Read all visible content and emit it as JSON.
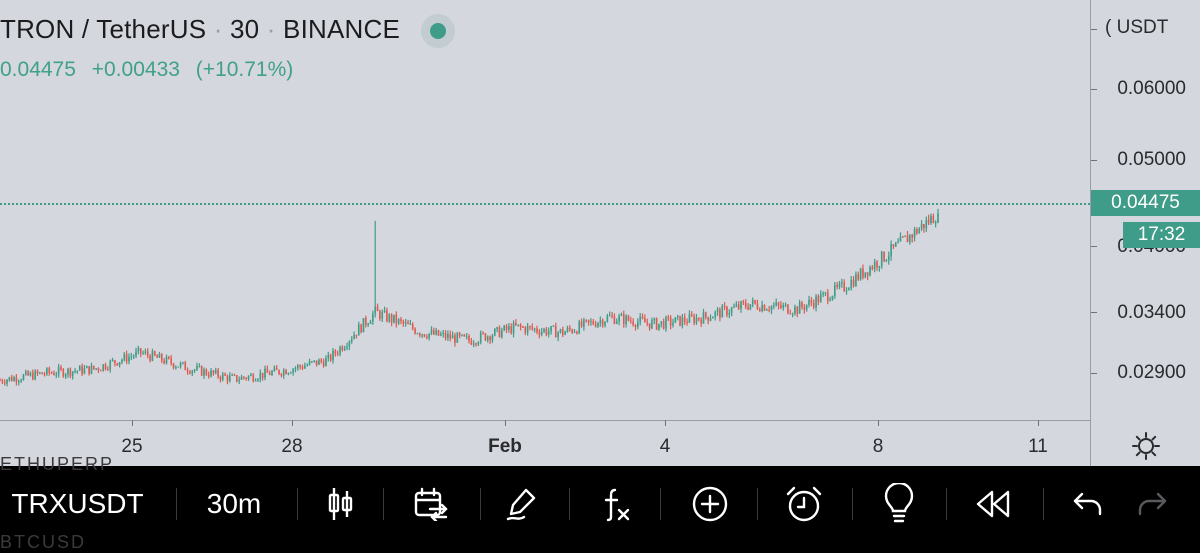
{
  "header": {
    "pair": "TRON / TetherUS",
    "interval": "30",
    "exchange": "BINANCE"
  },
  "ohlc": {
    "last": "0.04475",
    "change": "+0.00433",
    "change_pct": "(+10.71%)"
  },
  "price_axis": {
    "currency": "USDT",
    "ticks": [
      "0.06000",
      "0.05000",
      "0.03400",
      "0.02900"
    ],
    "partial_tick": "0.04000",
    "last_price": "0.04475",
    "countdown": "17:32"
  },
  "time_axis": {
    "labels": [
      "25",
      "28",
      "Feb",
      "4",
      "8",
      "11"
    ],
    "bold_label": "Feb"
  },
  "chart_data": {
    "type": "candlestick",
    "symbol": "TRXUSDT",
    "interval": "30m",
    "x_range": [
      "Jan 23",
      "Feb 9"
    ],
    "ylim": [
      0.026,
      0.063
    ],
    "last_price": 0.04475,
    "series": [
      {
        "date": "Jan 23",
        "close": 0.0283
      },
      {
        "date": "Jan 24",
        "close": 0.029
      },
      {
        "date": "Jan 25",
        "close": 0.0294
      },
      {
        "date": "Jan 25 12h",
        "close": 0.031
      },
      {
        "date": "Jan 26",
        "close": 0.0295
      },
      {
        "date": "Jan 27",
        "close": 0.0284
      },
      {
        "date": "Jan 28",
        "close": 0.0292
      },
      {
        "date": "Jan 29",
        "close": 0.0303
      },
      {
        "date": "Jan 29 12h",
        "close": 0.035,
        "high": 0.044
      },
      {
        "date": "Jan 30",
        "close": 0.033
      },
      {
        "date": "Jan 31",
        "close": 0.0322
      },
      {
        "date": "Feb 1",
        "close": 0.0335
      },
      {
        "date": "Feb 2",
        "close": 0.033
      },
      {
        "date": "Feb 3",
        "close": 0.0345
      },
      {
        "date": "Feb 4",
        "close": 0.0338
      },
      {
        "date": "Feb 5",
        "close": 0.0345
      },
      {
        "date": "Feb 6",
        "close": 0.0358
      },
      {
        "date": "Feb 7",
        "close": 0.0353
      },
      {
        "date": "Feb 8",
        "close": 0.0375
      },
      {
        "date": "Feb 8 12h",
        "close": 0.041
      },
      {
        "date": "Feb 9",
        "close": 0.04475
      }
    ]
  },
  "toolbar": {
    "symbol": "TRXUSDT",
    "interval": "30m"
  },
  "ghost": {
    "top": "ETHUPERP",
    "bottom": "BTCUSD"
  }
}
